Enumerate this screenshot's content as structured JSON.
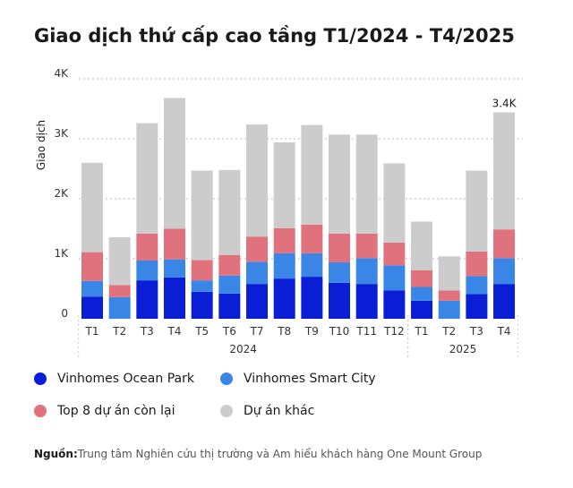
{
  "title": "Giao dịch thứ cấp cao tầng T1/2024 - T4/2025",
  "source": {
    "label": "Nguồn:",
    "text": "Trung tâm Nghiên cứu thị trường và Am hiểu khách hàng One Mount Group"
  },
  "colors": {
    "ocean_park": "#0a1ed6",
    "smart_city": "#3a86e6",
    "top8": "#e0727e",
    "others": "#cccccc"
  },
  "chart_data": {
    "type": "bar",
    "stacked": true,
    "ylabel": "Giao dịch",
    "ylim": [
      0,
      4000
    ],
    "yticks": [
      {
        "value": 0,
        "label": "0"
      },
      {
        "value": 1000,
        "label": "1K"
      },
      {
        "value": 2000,
        "label": "2K"
      },
      {
        "value": 3000,
        "label": "3K"
      },
      {
        "value": 4000,
        "label": "4K"
      }
    ],
    "categories": [
      "T1",
      "T2",
      "T3",
      "T4",
      "T5",
      "T6",
      "T7",
      "T8",
      "T9",
      "T10",
      "T11",
      "T12",
      "T1",
      "T2",
      "T3",
      "T4"
    ],
    "groups": [
      {
        "label": "2024",
        "count": 12
      },
      {
        "label": "2025",
        "count": 4
      }
    ],
    "series": [
      {
        "name": "Vinhomes Ocean Park",
        "color": "#0a1ed6",
        "values": [
          370,
          0,
          640,
          690,
          450,
          420,
          580,
          670,
          700,
          600,
          580,
          470,
          300,
          0,
          410,
          580
        ]
      },
      {
        "name": "Vinhomes Smart City",
        "color": "#3a86e6",
        "values": [
          260,
          360,
          330,
          300,
          190,
          300,
          370,
          420,
          390,
          340,
          430,
          420,
          230,
          300,
          300,
          430
        ]
      },
      {
        "name": "Top 8 dự án còn lại",
        "color": "#e0727e",
        "values": [
          480,
          200,
          450,
          510,
          340,
          340,
          420,
          420,
          480,
          480,
          410,
          380,
          280,
          170,
          410,
          480
        ]
      },
      {
        "name": "Dự án khác",
        "color": "#cccccc",
        "values": [
          1490,
          800,
          1840,
          2180,
          1490,
          1420,
          1870,
          1430,
          1660,
          1650,
          1650,
          1320,
          810,
          570,
          1350,
          1950
        ]
      }
    ],
    "annotations": [
      {
        "category_index": 15,
        "text": "3.4K"
      }
    ],
    "grid": true,
    "legend_position": "bottom"
  }
}
